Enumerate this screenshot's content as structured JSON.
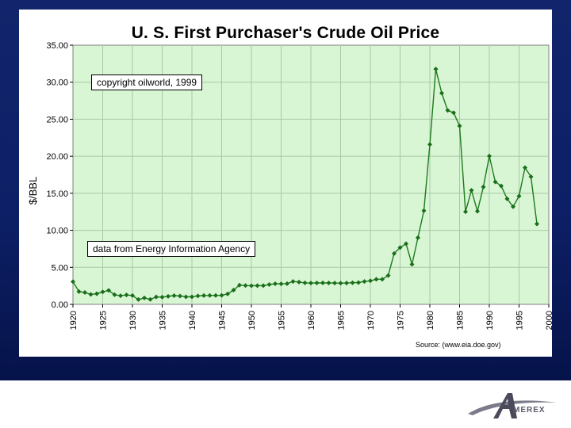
{
  "chart_data": {
    "type": "line",
    "title": "U. S. First Purchaser's Crude Oil Price",
    "xlabel": "",
    "ylabel": "$/BBL",
    "xlim": [
      1920,
      2000
    ],
    "ylim": [
      0,
      35
    ],
    "x_ticks": [
      "1920",
      "1925",
      "1930",
      "1935",
      "1940",
      "1945",
      "1950",
      "1955",
      "1960",
      "1965",
      "1970",
      "1975",
      "1980",
      "1985",
      "1990",
      "1995",
      "2000"
    ],
    "y_ticks": [
      "0.00",
      "5.00",
      "10.00",
      "15.00",
      "20.00",
      "25.00",
      "30.00",
      "35.00"
    ],
    "grid": true,
    "series": [
      {
        "name": "",
        "color": "#1e7a1e",
        "x": [
          1920,
          1921,
          1922,
          1923,
          1924,
          1925,
          1926,
          1927,
          1928,
          1929,
          1930,
          1931,
          1932,
          1933,
          1934,
          1935,
          1936,
          1937,
          1938,
          1939,
          1940,
          1941,
          1942,
          1943,
          1944,
          1945,
          1946,
          1947,
          1948,
          1949,
          1950,
          1951,
          1952,
          1953,
          1954,
          1955,
          1956,
          1957,
          1958,
          1959,
          1960,
          1961,
          1962,
          1963,
          1964,
          1965,
          1966,
          1967,
          1968,
          1969,
          1970,
          1971,
          1972,
          1973,
          1974,
          1975,
          1976,
          1977,
          1978,
          1979,
          1980,
          1981,
          1982,
          1983,
          1984,
          1985,
          1986,
          1987,
          1988,
          1989,
          1990,
          1991,
          1992,
          1993,
          1994,
          1995,
          1996,
          1997,
          1998
        ],
        "y": [
          3.07,
          1.73,
          1.61,
          1.34,
          1.43,
          1.68,
          1.88,
          1.3,
          1.17,
          1.27,
          1.19,
          0.65,
          0.87,
          0.67,
          1.0,
          0.97,
          1.09,
          1.18,
          1.13,
          1.02,
          1.02,
          1.14,
          1.19,
          1.2,
          1.21,
          1.22,
          1.41,
          1.93,
          2.6,
          2.54,
          2.51,
          2.53,
          2.53,
          2.68,
          2.78,
          2.77,
          2.79,
          3.09,
          3.01,
          2.9,
          2.88,
          2.89,
          2.9,
          2.89,
          2.88,
          2.86,
          2.88,
          2.92,
          2.94,
          3.09,
          3.18,
          3.39,
          3.39,
          3.89,
          6.87,
          7.67,
          8.19,
          5.4,
          9.0,
          12.64,
          21.59,
          31.77,
          28.52,
          26.19,
          25.88,
          24.09,
          12.51,
          15.4,
          12.58,
          15.86,
          20.03,
          16.54,
          15.99,
          14.25,
          13.19,
          14.62,
          18.46,
          17.23,
          10.87
        ]
      }
    ],
    "annotations": [
      "copyright oilworld, 1999",
      "data from Energy Information Agency"
    ],
    "source": "Source: (www.eia.doe.gov)"
  },
  "footer": {
    "logo_text": "MEREX",
    "logo_letter": "A",
    "accent_color": "#5a5a6a"
  }
}
